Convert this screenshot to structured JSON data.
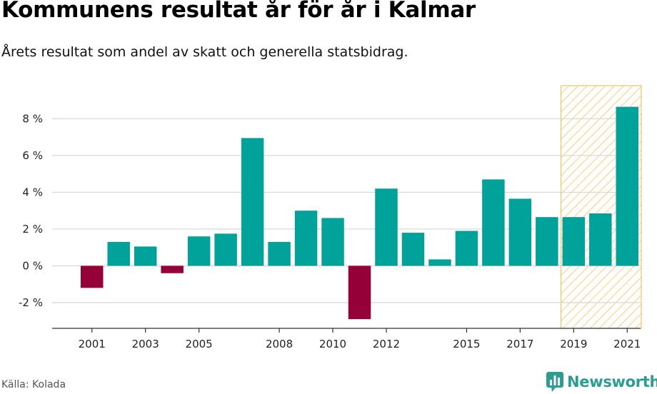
{
  "header": {
    "title": "Kommunens resultat år för år i Kalmar",
    "subtitle": "Årets resultat som andel av skatt och generella statsbidrag."
  },
  "footer": {
    "source": "Källa: Kolada",
    "logo_text": "Newsworthy"
  },
  "colors": {
    "positive": "#00a29a",
    "negative": "#960039",
    "highlight": "#f5c35a",
    "grid": "#d9d9d9"
  },
  "chart_data": {
    "type": "bar",
    "title": "Kommunens resultat år för år i Kalmar",
    "subtitle": "Årets resultat som andel av skatt och generella statsbidrag.",
    "xlabel": "",
    "ylabel": "",
    "categories": [
      "2001",
      "2002",
      "2003",
      "2004",
      "2005",
      "2006",
      "2007",
      "2008",
      "2009",
      "2010",
      "2011",
      "2012",
      "2013",
      "2014",
      "2015",
      "2016",
      "2017",
      "2018",
      "2019",
      "2020",
      "2021"
    ],
    "values": [
      -1.2,
      1.3,
      1.05,
      -0.4,
      1.6,
      1.75,
      6.95,
      1.3,
      3.0,
      2.6,
      -2.9,
      4.2,
      1.8,
      0.35,
      1.9,
      4.7,
      3.65,
      2.65,
      2.65,
      2.85,
      8.65
    ],
    "x_tick_labels": [
      "2001",
      "2003",
      "2005",
      "2008",
      "2010",
      "2012",
      "2015",
      "2017",
      "2019",
      "2021"
    ],
    "y_ticks": [
      -2,
      0,
      2,
      4,
      6,
      8
    ],
    "y_tick_labels": [
      "-2 %",
      "0 %",
      "2 %",
      "4 %",
      "6 %",
      "8 %"
    ],
    "ylim": [
      -3.4,
      9.8
    ],
    "highlight_range": [
      "2019",
      "2021"
    ],
    "grid": true
  }
}
